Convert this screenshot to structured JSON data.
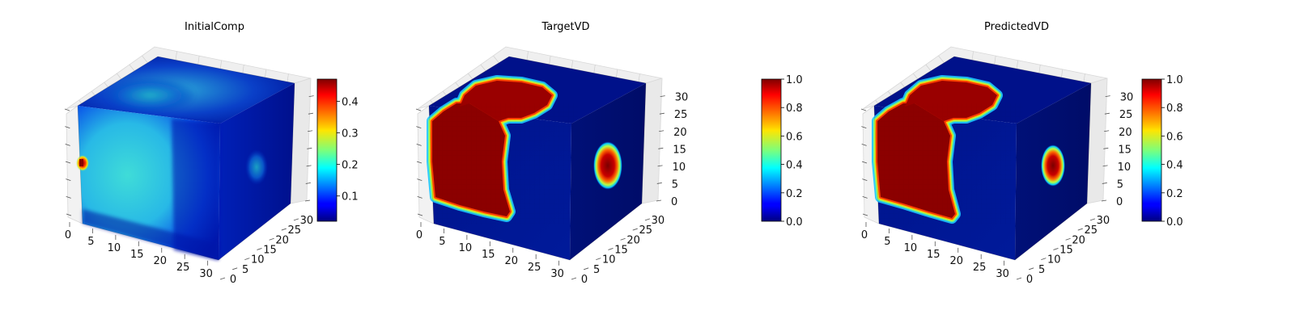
{
  "figure": {
    "panels": [
      {
        "title": "InitialComp"
      },
      {
        "title": "TargetVD"
      },
      {
        "title": "PredictedVD"
      }
    ]
  },
  "chart_data": [
    {
      "type": "heatmap",
      "subtype": "3d-voxel-cube",
      "title": "InitialComp",
      "colormap": "jet",
      "x_ticks": [
        "0",
        "5",
        "10",
        "15",
        "20",
        "25",
        "30"
      ],
      "y_ticks": [
        "0",
        "5",
        "10",
        "15",
        "20",
        "25",
        "30"
      ],
      "z_ticks": [],
      "xlim": [
        0,
        32
      ],
      "ylim": [
        0,
        32
      ],
      "zlim": [
        0,
        32
      ],
      "colorbar": {
        "min": 0.02,
        "max": 0.47,
        "ticks": [
          "0.1",
          "0.2",
          "0.3",
          "0.4"
        ],
        "tick_values": [
          0.1,
          0.2,
          0.3,
          0.4
        ]
      },
      "grid": true
    },
    {
      "type": "heatmap",
      "subtype": "3d-voxel-cube",
      "title": "TargetVD",
      "colormap": "jet",
      "x_ticks": [
        "0",
        "5",
        "10",
        "15",
        "20",
        "25",
        "30"
      ],
      "y_ticks": [
        "0",
        "5",
        "10",
        "15",
        "20",
        "25",
        "30"
      ],
      "z_ticks": [
        "0",
        "5",
        "10",
        "15",
        "20",
        "25",
        "30"
      ],
      "xlim": [
        0,
        32
      ],
      "ylim": [
        0,
        32
      ],
      "zlim": [
        0,
        32
      ],
      "colorbar": {
        "min": 0.0,
        "max": 1.0,
        "ticks": [
          "0.0",
          "0.2",
          "0.4",
          "0.6",
          "0.8",
          "1.0"
        ],
        "tick_values": [
          0,
          0.2,
          0.4,
          0.6,
          0.8,
          1.0
        ]
      },
      "grid": true
    },
    {
      "type": "heatmap",
      "subtype": "3d-voxel-cube",
      "title": "PredictedVD",
      "colormap": "jet",
      "x_ticks": [
        "0",
        "5",
        "10",
        "15",
        "20",
        "25",
        "30"
      ],
      "y_ticks": [
        "0",
        "5",
        "10",
        "15",
        "20",
        "25",
        "30"
      ],
      "z_ticks": [
        "0",
        "5",
        "10",
        "15",
        "20",
        "25",
        "30"
      ],
      "xlim": [
        0,
        32
      ],
      "ylim": [
        0,
        32
      ],
      "zlim": [
        0,
        32
      ],
      "colorbar": {
        "min": 0.0,
        "max": 1.0,
        "ticks": [
          "0.0",
          "0.2",
          "0.4",
          "0.6",
          "0.8",
          "1.0"
        ],
        "tick_values": [
          0,
          0.2,
          0.4,
          0.6,
          0.8,
          1.0
        ]
      },
      "grid": true
    }
  ]
}
